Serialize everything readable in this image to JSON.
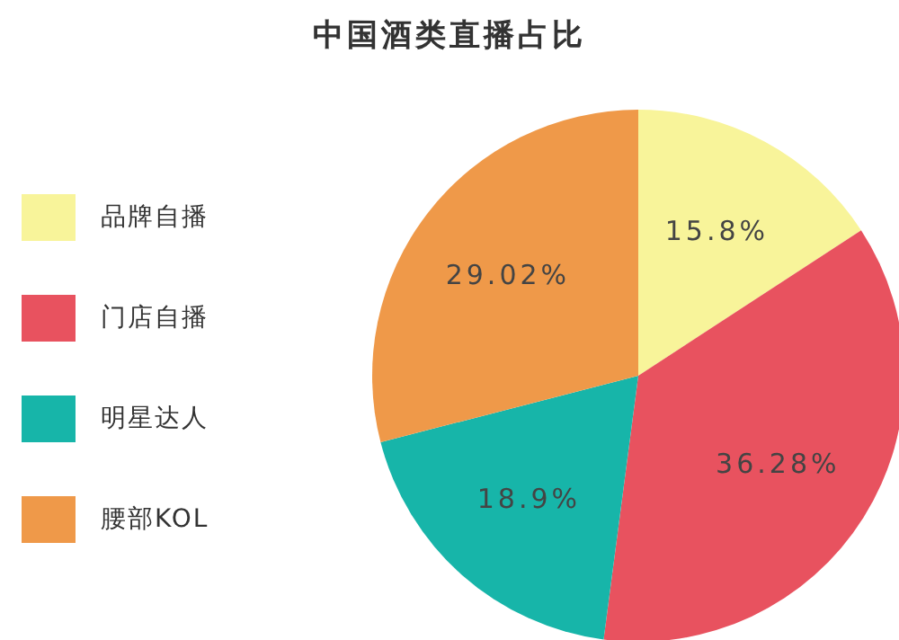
{
  "chart_data": {
    "type": "pie",
    "title": "中国酒类直播占比",
    "categories": [
      "品牌自播",
      "门店自播",
      "明星达人",
      "腰部KOL"
    ],
    "values": [
      15.8,
      36.28,
      18.9,
      29.02
    ],
    "colors": [
      "#f8f49a",
      "#e8525f",
      "#17b5a9",
      "#ef9949"
    ],
    "value_labels": [
      "15.8%",
      "36.28%",
      "18.9%",
      "29.02%"
    ],
    "legend": "left"
  }
}
